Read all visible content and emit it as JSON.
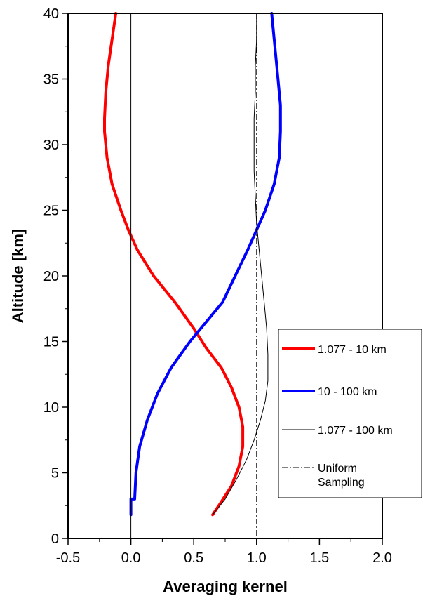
{
  "chart_data": {
    "type": "line",
    "title": "",
    "xlabel": "Averaging kernel",
    "ylabel": "Altitude [km]",
    "xlim": [
      -0.5,
      2.0
    ],
    "ylim": [
      0,
      40
    ],
    "xticks": [
      "-0.5",
      "0.0",
      "0.5",
      "1.0",
      "1.5",
      "2.0"
    ],
    "yticks": [
      "0",
      "5",
      "10",
      "15",
      "20",
      "25",
      "30",
      "35",
      "40"
    ],
    "grid": false,
    "legend_position": "right",
    "vlines": [
      {
        "x": 0.0,
        "style": "solid",
        "color": "#000000"
      },
      {
        "x": 1.0,
        "style": "dash-dot",
        "color": "#000000",
        "legend_name": "Uniform Sampling"
      }
    ],
    "series": [
      {
        "name": "1.077 - 10 km",
        "color": "#ff0000",
        "width": "thick",
        "points": [
          [
            0.65,
            1.8
          ],
          [
            0.72,
            2.8
          ],
          [
            0.8,
            4.0
          ],
          [
            0.86,
            5.5
          ],
          [
            0.89,
            7.0
          ],
          [
            0.89,
            8.5
          ],
          [
            0.86,
            10.0
          ],
          [
            0.8,
            11.5
          ],
          [
            0.72,
            13.0
          ],
          [
            0.6,
            14.5
          ],
          [
            0.5,
            16.0
          ],
          [
            0.35,
            18.0
          ],
          [
            0.18,
            20.0
          ],
          [
            0.05,
            22.0
          ],
          [
            -0.02,
            23.5
          ],
          [
            -0.08,
            25.0
          ],
          [
            -0.15,
            27.0
          ],
          [
            -0.19,
            29.0
          ],
          [
            -0.21,
            31.0
          ],
          [
            -0.21,
            32.0
          ],
          [
            -0.2,
            34.0
          ],
          [
            -0.18,
            36.0
          ],
          [
            -0.15,
            38.0
          ],
          [
            -0.12,
            40.0
          ]
        ]
      },
      {
        "name": "10 - 100 km",
        "color": "#0000ff",
        "width": "thick",
        "points": [
          [
            0.0,
            1.8
          ],
          [
            0.0,
            3.0
          ],
          [
            0.03,
            3.0
          ],
          [
            0.04,
            5.0
          ],
          [
            0.07,
            7.0
          ],
          [
            0.13,
            9.0
          ],
          [
            0.21,
            11.0
          ],
          [
            0.32,
            13.0
          ],
          [
            0.47,
            15.0
          ],
          [
            0.6,
            16.5
          ],
          [
            0.73,
            18.0
          ],
          [
            0.83,
            20.0
          ],
          [
            0.93,
            22.0
          ],
          [
            1.0,
            23.5
          ],
          [
            1.07,
            25.0
          ],
          [
            1.14,
            27.0
          ],
          [
            1.18,
            29.0
          ],
          [
            1.19,
            31.0
          ],
          [
            1.19,
            33.0
          ],
          [
            1.17,
            35.0
          ],
          [
            1.15,
            37.0
          ],
          [
            1.13,
            39.0
          ],
          [
            1.12,
            40.0
          ]
        ]
      },
      {
        "name": "1.077 - 100 km",
        "color": "#000000",
        "width": "thin",
        "points": [
          [
            0.65,
            1.8
          ],
          [
            0.75,
            3.0
          ],
          [
            0.84,
            4.5
          ],
          [
            0.92,
            6.0
          ],
          [
            0.98,
            7.5
          ],
          [
            1.03,
            9.0
          ],
          [
            1.07,
            10.5
          ],
          [
            1.09,
            12.0
          ],
          [
            1.09,
            14.0
          ],
          [
            1.08,
            16.0
          ],
          [
            1.06,
            18.0
          ],
          [
            1.04,
            20.0
          ],
          [
            1.02,
            22.0
          ],
          [
            1.0,
            24.0
          ],
          [
            0.99,
            26.0
          ],
          [
            0.98,
            28.0
          ],
          [
            0.98,
            30.0
          ],
          [
            0.98,
            32.0
          ],
          [
            0.99,
            34.0
          ],
          [
            0.99,
            36.0
          ],
          [
            1.0,
            38.0
          ],
          [
            1.0,
            40.0
          ]
        ]
      }
    ],
    "legend": [
      {
        "label": "1.077 - 10 km",
        "color": "#ff0000",
        "style": "thick"
      },
      {
        "label": "10 - 100 km",
        "color": "#0000ff",
        "style": "thick"
      },
      {
        "label": "1.077 - 100 km",
        "color": "#000000",
        "style": "thin"
      },
      {
        "label_lines": [
          "Uniform",
          "Sampling"
        ],
        "color": "#000000",
        "style": "dash-dot"
      }
    ]
  }
}
